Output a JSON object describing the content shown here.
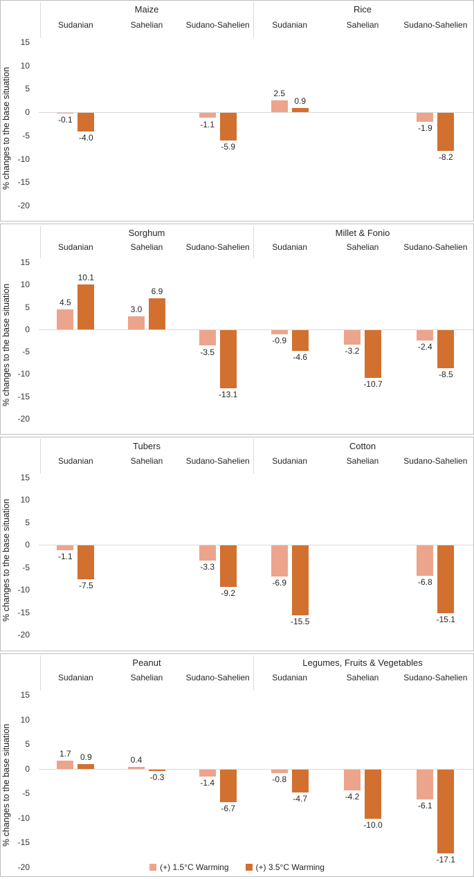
{
  "figure": {
    "ylabel": "% changes to the base situation",
    "colors": {
      "warming_1_5": "#eca58c",
      "warming_3_5": "#d2702f",
      "zero_line": "#d9d9d9",
      "separator": "#d9d9d9",
      "panel_border": "#bdbdbd",
      "text": "#262626"
    },
    "legend": {
      "position": "bottom",
      "items": [
        {
          "label": "(+) 1.5°C Warming",
          "color": "#eca58c"
        },
        {
          "label": "(+) 3.5°C Warming",
          "color": "#d2702f"
        }
      ]
    }
  },
  "chart_data": [
    {
      "type": "bar",
      "ylabel": "% changes to the base situation",
      "ylim": [
        -20,
        15
      ],
      "yticks": [
        15,
        10,
        5,
        0,
        -5,
        -10,
        -15,
        -20
      ],
      "grid": "zero-line-only",
      "legend_position": "none",
      "groups": [
        {
          "title": "Maize",
          "categories": [
            "Sudanian",
            "Sahelian",
            "Sudano-Sahelien"
          ],
          "series": [
            {
              "name": "(+) 1.5°C Warming",
              "values": [
                -0.1,
                null,
                -1.1
              ]
            },
            {
              "name": "(+) 3.5°C Warming",
              "values": [
                -4.0,
                null,
                -5.9
              ]
            }
          ]
        },
        {
          "title": "Rice",
          "categories": [
            "Sudanian",
            "Sahelian",
            "Sudano-Sahelien"
          ],
          "series": [
            {
              "name": "(+) 1.5°C Warming",
              "values": [
                2.5,
                null,
                -1.9
              ]
            },
            {
              "name": "(+) 3.5°C Warming",
              "values": [
                0.9,
                null,
                -8.2
              ]
            }
          ]
        }
      ]
    },
    {
      "type": "bar",
      "ylabel": "% changes to the base situation",
      "ylim": [
        -20,
        15
      ],
      "yticks": [
        15,
        10,
        5,
        0,
        -5,
        -10,
        -15,
        -20
      ],
      "grid": "zero-line-only",
      "legend_position": "none",
      "groups": [
        {
          "title": "Sorghum",
          "categories": [
            "Sudanian",
            "Sahelian",
            "Sudano-Sahelien"
          ],
          "series": [
            {
              "name": "(+) 1.5°C Warming",
              "values": [
                4.5,
                3.0,
                -3.5
              ]
            },
            {
              "name": "(+) 3.5°C Warming",
              "values": [
                10.1,
                6.9,
                -13.1
              ]
            }
          ]
        },
        {
          "title": "Millet & Fonio",
          "categories": [
            "Sudanian",
            "Sahelian",
            "Sudano-Sahelien"
          ],
          "series": [
            {
              "name": "(+) 1.5°C Warming",
              "values": [
                -0.9,
                -3.2,
                -2.4
              ]
            },
            {
              "name": "(+) 3.5°C Warming",
              "values": [
                -4.6,
                -10.7,
                -8.5
              ]
            }
          ]
        }
      ]
    },
    {
      "type": "bar",
      "ylabel": "% changes to the base situation",
      "ylim": [
        -20,
        15
      ],
      "yticks": [
        15,
        10,
        5,
        0,
        -5,
        -10,
        -15,
        -20
      ],
      "grid": "zero-line-only",
      "legend_position": "none",
      "groups": [
        {
          "title": "Tubers",
          "categories": [
            "Sudanian",
            "Sahelian",
            "Sudano-Sahelien"
          ],
          "series": [
            {
              "name": "(+) 1.5°C Warming",
              "values": [
                -1.1,
                null,
                -3.3
              ]
            },
            {
              "name": "(+) 3.5°C Warming",
              "values": [
                -7.5,
                null,
                -9.2
              ]
            }
          ]
        },
        {
          "title": "Cotton",
          "categories": [
            "Sudanian",
            "Sahelian",
            "Sudano-Sahelien"
          ],
          "series": [
            {
              "name": "(+) 1.5°C Warming",
              "values": [
                -6.9,
                null,
                -6.8
              ]
            },
            {
              "name": "(+) 3.5°C Warming",
              "values": [
                -15.5,
                null,
                -15.1
              ]
            }
          ]
        }
      ]
    },
    {
      "type": "bar",
      "ylabel": "% changes to the base situation",
      "ylim": [
        -20,
        15
      ],
      "yticks": [
        15,
        10,
        5,
        0,
        -5,
        -10,
        -15,
        -20
      ],
      "grid": "zero-line-only",
      "legend_position": "bottom",
      "groups": [
        {
          "title": "Peanut",
          "categories": [
            "Sudanian",
            "Sahelian",
            "Sudano-Sahelien"
          ],
          "series": [
            {
              "name": "(+) 1.5°C Warming",
              "values": [
                1.7,
                0.4,
                -1.4
              ]
            },
            {
              "name": "(+) 3.5°C Warming",
              "values": [
                0.9,
                -0.3,
                -6.7
              ]
            }
          ]
        },
        {
          "title": "Legumes, Fruits & Vegetables",
          "categories": [
            "Sudanian",
            "Sahelian",
            "Sudano-Sahelien"
          ],
          "series": [
            {
              "name": "(+) 1.5°C Warming",
              "values": [
                -0.8,
                -4.2,
                -6.1
              ]
            },
            {
              "name": "(+) 3.5°C Warming",
              "values": [
                -4.7,
                -10.0,
                -17.1
              ]
            }
          ]
        }
      ]
    }
  ]
}
